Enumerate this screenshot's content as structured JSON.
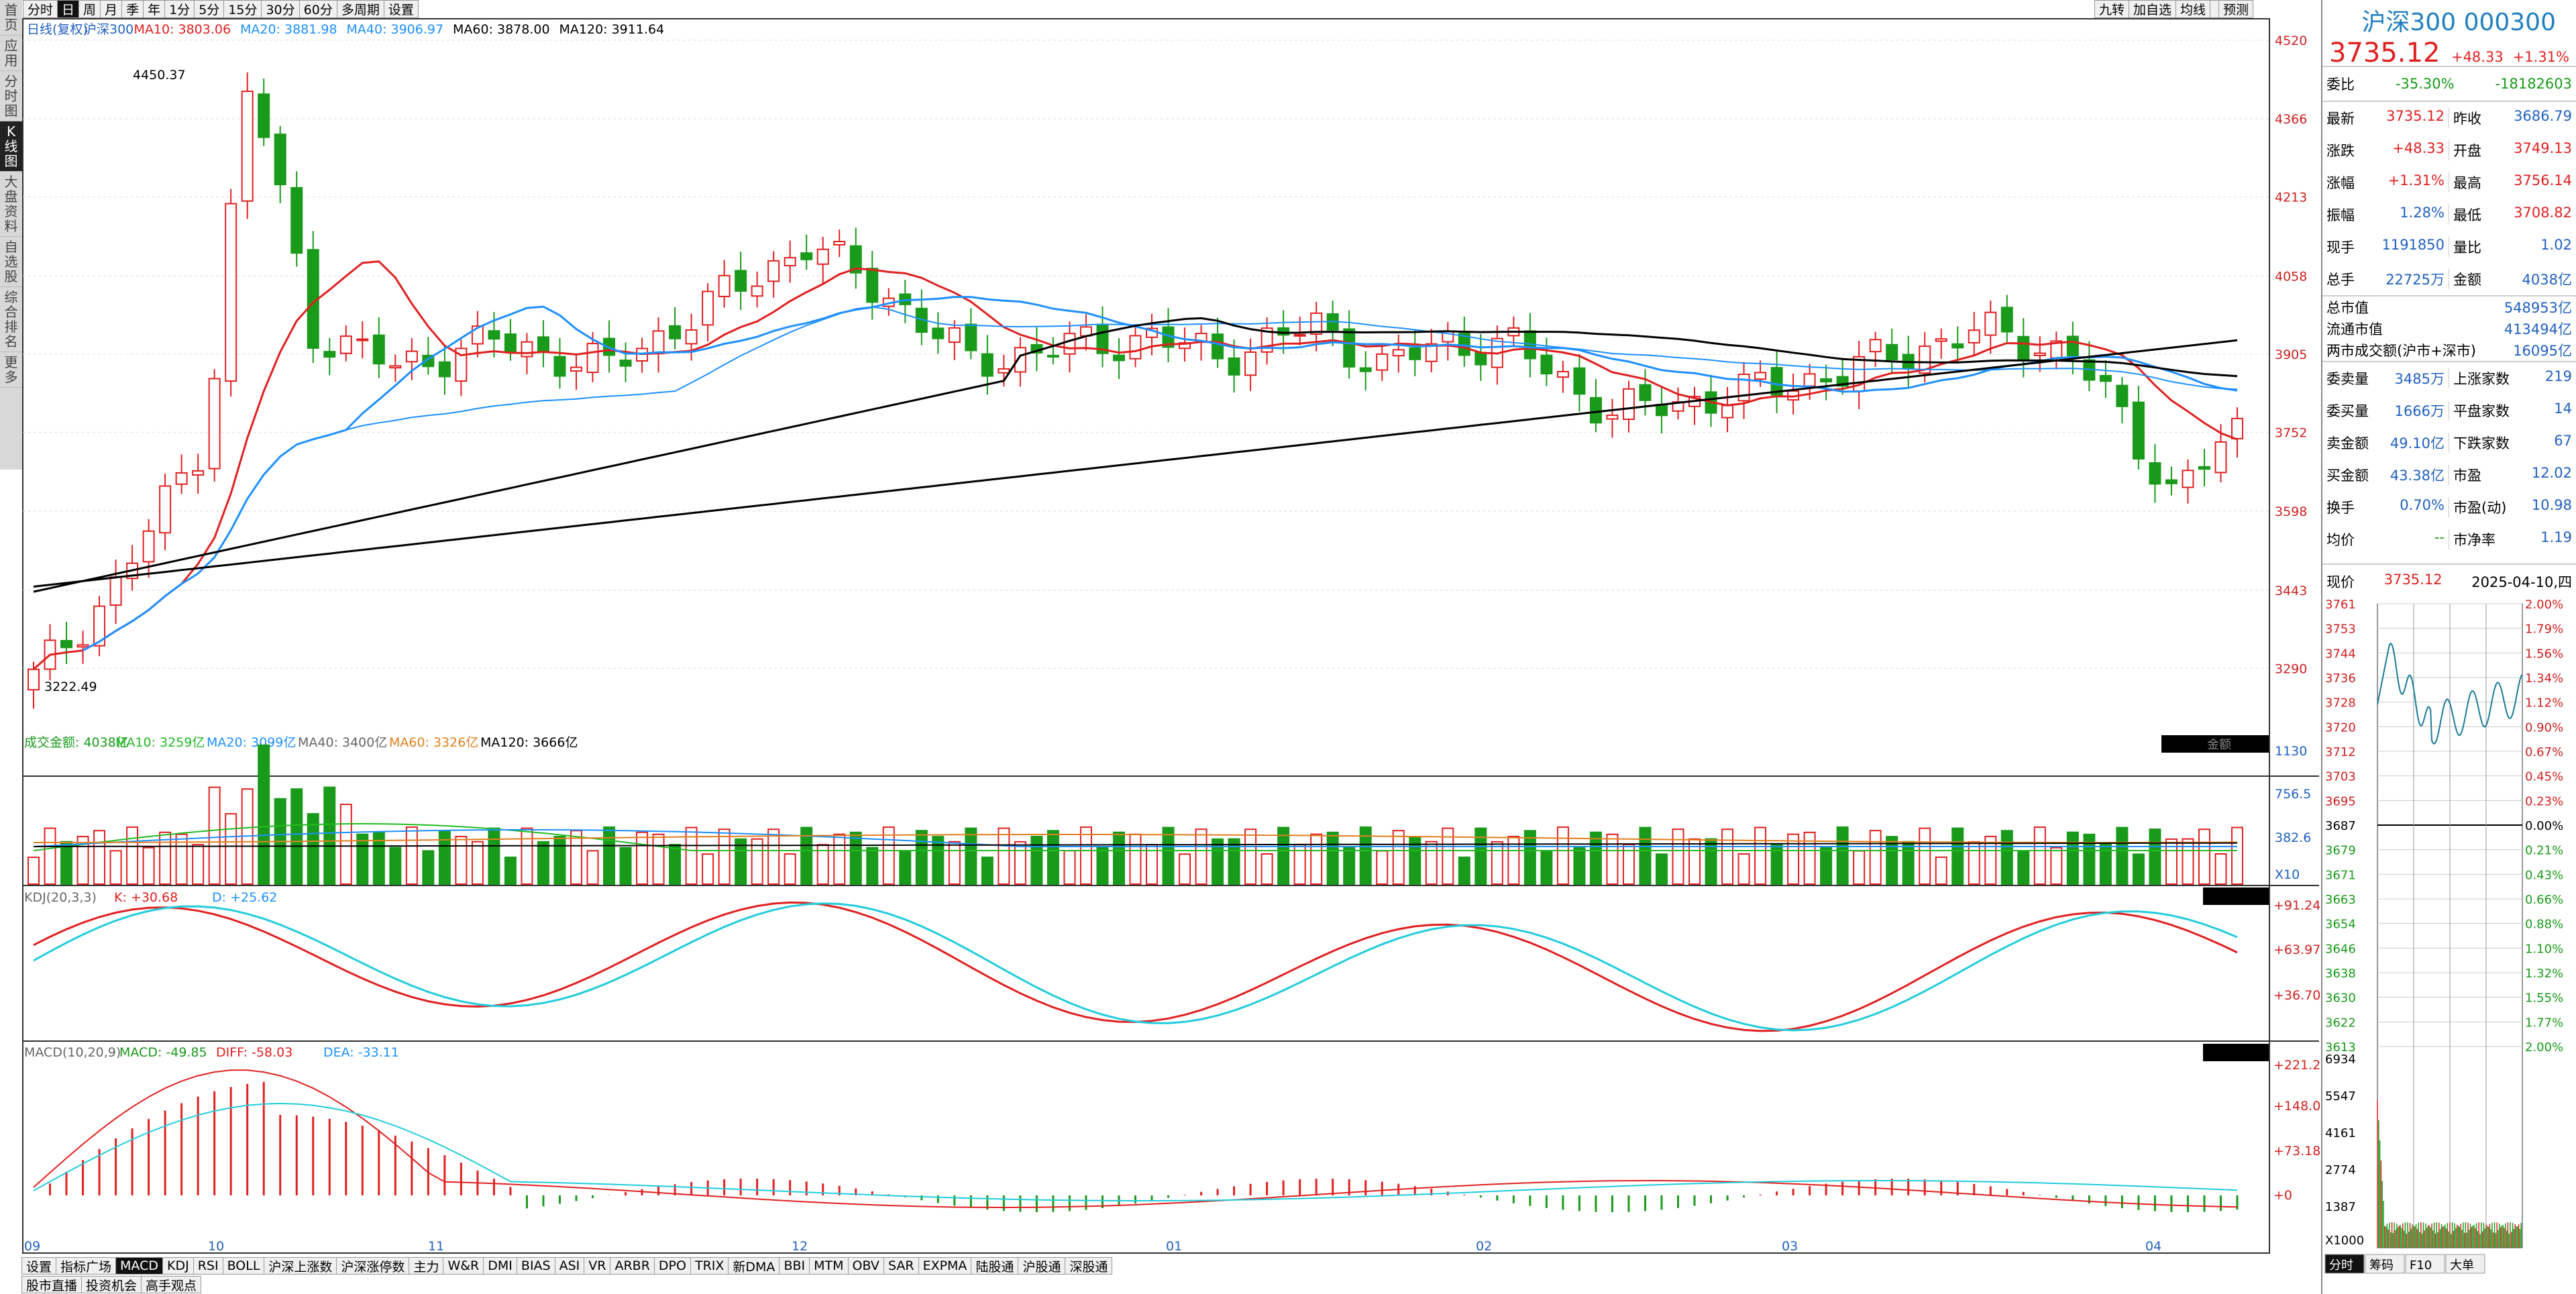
{
  "top_toolbar": [
    "分时",
    "日",
    "周",
    "月",
    "季",
    "年",
    "1分",
    "5分",
    "15分",
    "30分",
    "60分",
    "多周期",
    "设置"
  ],
  "top_right": [
    "九转",
    "加自选",
    "均线",
    "",
    "预测"
  ],
  "left_nav": [
    "首页",
    "应用",
    "分时图",
    "K线图",
    "大盘资料",
    "自选股",
    "综合排名",
    "更多"
  ],
  "chart_legend": {
    "label": "日线(复权)",
    "name": "沪深300",
    "ma10": "MA10: 3803.06",
    "ma20": "MA20: 3881.98",
    "ma40": "MA40: 3906.97",
    "ma60": "MA60: 3878.00",
    "ma120": "MA120: 3911.64"
  },
  "price_axis": [
    "4520",
    "4366",
    "4213",
    "4058",
    "3905",
    "3752",
    "3598",
    "3443",
    "3290"
  ],
  "high_label": "4450.37",
  "low_label": "3222.49",
  "vol_legend": {
    "label": "成交金额: 4038亿",
    "ma10": "MA10: 3259亿",
    "ma20": "MA20: 3099亿",
    "ma40": "MA40: 3400亿",
    "ma60": "MA60: 3326亿",
    "ma120": "MA120: 3666亿",
    "badge": "金额"
  },
  "vol_axis": [
    "1130",
    "756.5",
    "382.6",
    "X10"
  ],
  "kdj_legend": {
    "label": "KDJ(20,3,3)",
    "k": "K: +30.68",
    "d": "D: +25.62"
  },
  "kdj_axis": [
    "+91.24",
    "+63.97",
    "+36.70"
  ],
  "macd_legend": {
    "label": "MACD(10,20,9)",
    "macd": "MACD: -49.85",
    "diff": "DIFF: -58.03",
    "dea": "DEA: -33.11"
  },
  "macd_axis": [
    "+221.2",
    "+148.0",
    "+73.18",
    "+0"
  ],
  "x_labels": [
    "09",
    "10",
    "11",
    "12",
    "01",
    "02",
    "03",
    "04"
  ],
  "bottom_tabs": [
    "设置",
    "指标广场",
    "MACD",
    "KDJ",
    "RSI",
    "BOLL",
    "沪深上涨数",
    "沪深涨停数",
    "主力",
    "W&R",
    "DMI",
    "BIAS",
    "ASI",
    "VR",
    "ARBR",
    "DPO",
    "TRIX",
    "新DMA",
    "BBI",
    "MTM",
    "OBV",
    "SAR",
    "EXPMA",
    "陆股通",
    "沪股通",
    "深股通"
  ],
  "bottom_bar": [
    "股市直播",
    "投资机会",
    "高手观点"
  ],
  "quote": {
    "title": "沪深300 000300",
    "price": "3735.12",
    "chg": "+48.33",
    "pct": "+1.31%",
    "wb_label": "委比",
    "wb_pct": "-35.30%",
    "wb_val": "-18182603",
    "rows": [
      [
        "最新",
        "3735.12",
        "昨收",
        "3686.79"
      ],
      [
        "涨跌",
        "+48.33",
        "开盘",
        "3749.13"
      ],
      [
        "涨幅",
        "+1.31%",
        "最高",
        "3756.14"
      ],
      [
        "振幅",
        "1.28%",
        "最低",
        "3708.82"
      ],
      [
        "现手",
        "1191850",
        "量比",
        "1.02"
      ],
      [
        "总手",
        "22725万",
        "金额",
        "4038亿"
      ]
    ],
    "mcap": [
      [
        "总市值",
        "548953亿"
      ],
      [
        "流通市值",
        "413494亿"
      ],
      [
        "两市成交额(沪市+深市)",
        "16095亿"
      ]
    ],
    "rows2": [
      [
        "委卖量",
        "3485万",
        "上涨家数",
        "219"
      ],
      [
        "委买量",
        "1666万",
        "平盘家数",
        "14"
      ],
      [
        "卖金额",
        "49.10亿",
        "下跌家数",
        "67"
      ],
      [
        "买金额",
        "43.38亿",
        "市盈",
        "12.02"
      ],
      [
        "换手",
        "0.70%",
        "市盈(动)",
        "10.98"
      ],
      [
        "均价",
        "--",
        "市净率",
        "1.19"
      ]
    ],
    "now_label": "现价",
    "now_val": "3735.12",
    "date": "2025-04-10,四"
  },
  "intraday": {
    "left": [
      "3761",
      "3753",
      "3744",
      "3736",
      "3728",
      "3720",
      "3712",
      "3703",
      "3695",
      "3687",
      "3679",
      "3671",
      "3663",
      "3654",
      "3646",
      "3638",
      "3630",
      "3622",
      "3613"
    ],
    "right": [
      "2.00%",
      "1.79%",
      "1.56%",
      "1.34%",
      "1.12%",
      "0.90%",
      "0.67%",
      "0.45%",
      "0.23%",
      "0.00%",
      "0.21%",
      "0.43%",
      "0.66%",
      "0.88%",
      "1.10%",
      "1.32%",
      "1.55%",
      "1.77%",
      "2.00%"
    ],
    "vol": [
      "6934",
      "5547",
      "4161",
      "2774",
      "1387",
      "X1000"
    ],
    "tabs": [
      "分时",
      "筹码",
      "F10",
      "大单"
    ]
  }
}
